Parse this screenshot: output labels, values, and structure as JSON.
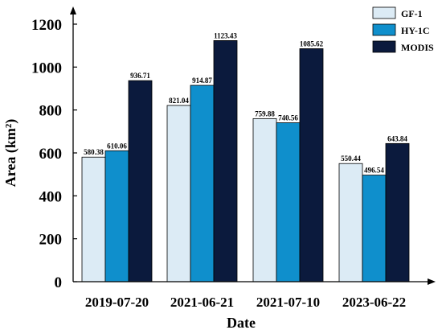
{
  "chart_data": {
    "type": "bar",
    "categories": [
      "2019-07-20",
      "2021-06-21",
      "2021-07-10",
      "2023-06-22"
    ],
    "series": [
      {
        "name": "GF-1",
        "color": "#dcebf5",
        "values": [
          580.38,
          821.04,
          759.88,
          550.44
        ],
        "labels": [
          "580.38",
          "821.04",
          "759.88",
          "550.44"
        ]
      },
      {
        "name": "HY-1C",
        "color": "#0f8fcc",
        "values": [
          610.06,
          914.87,
          740.56,
          496.54
        ],
        "labels": [
          "610.06",
          "914.87",
          "740.56",
          "496.54"
        ]
      },
      {
        "name": "MODIS",
        "color": "#0b1a3d",
        "values": [
          936.71,
          1123.43,
          1085.62,
          643.84
        ],
        "labels": [
          "936.71",
          "1123.43",
          "1085.62",
          "643.84"
        ]
      }
    ],
    "title": "",
    "xlabel": "Date",
    "ylabel": "Area (km²)",
    "ylim": [
      0,
      1200
    ],
    "yticks": [
      0,
      200,
      400,
      600,
      800,
      1000,
      1200
    ],
    "ytick_labels": [
      "0",
      "200",
      "400",
      "600",
      "800",
      "1000",
      "1200"
    ],
    "grid": false,
    "legend_position": "top-right"
  }
}
